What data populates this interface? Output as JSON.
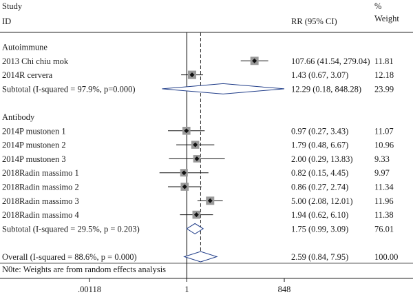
{
  "chart_data": {
    "type": "forest",
    "headers": {
      "study_top": "Study",
      "study_bottom": "ID",
      "effect": "RR (95% CI)",
      "weight_top": "%",
      "weight_bottom": "Weight"
    },
    "x_scale": "log",
    "x_ticks": [
      ".00118",
      "1",
      "848"
    ],
    "x_tick_values": [
      0.00118,
      1,
      848
    ],
    "null_line": 1,
    "overall_line": 2.59,
    "rows": [
      {
        "kind": "group",
        "label": "Autoimmune"
      },
      {
        "kind": "study",
        "label": "2013 Chi chiu mok",
        "rr": 107.66,
        "lo": 41.54,
        "hi": 279.04,
        "effect_text": "107.66 (41.54, 279.04)",
        "weight": 11.81,
        "weight_text": "11.81"
      },
      {
        "kind": "study",
        "label": "2014R cervera",
        "rr": 1.43,
        "lo": 0.67,
        "hi": 3.07,
        "effect_text": "1.43 (0.67, 3.07)",
        "weight": 12.18,
        "weight_text": "12.18"
      },
      {
        "kind": "subtotal",
        "label": "Subtotal (I-squared = 97.9%, p=0.000)",
        "rr": 12.29,
        "lo": 0.18,
        "hi": 848.28,
        "effect_text": "12.29 (0.18, 848.28)",
        "weight_text": "23.99"
      },
      {
        "kind": "spacer"
      },
      {
        "kind": "group",
        "label": "Antibody"
      },
      {
        "kind": "study",
        "label": "2014P mustonen 1",
        "rr": 0.97,
        "lo": 0.27,
        "hi": 3.43,
        "effect_text": "0.97 (0.27, 3.43)",
        "weight": 11.07,
        "weight_text": "11.07"
      },
      {
        "kind": "study",
        "label": "2014P mustonen 2",
        "rr": 1.79,
        "lo": 0.48,
        "hi": 6.67,
        "effect_text": "1.79 (0.48, 6.67)",
        "weight": 10.96,
        "weight_text": "10.96"
      },
      {
        "kind": "study",
        "label": "2014P mustonen 3",
        "rr": 2.0,
        "lo": 0.29,
        "hi": 13.83,
        "effect_text": "2.00 (0.29, 13.83)",
        "weight": 9.33,
        "weight_text": "9.33"
      },
      {
        "kind": "study",
        "label": "2018Radin massimo 1",
        "rr": 0.82,
        "lo": 0.15,
        "hi": 4.45,
        "effect_text": "0.82 (0.15, 4.45)",
        "weight": 9.97,
        "weight_text": "9.97"
      },
      {
        "kind": "study",
        "label": "2018Radin massimo 2",
        "rr": 0.86,
        "lo": 0.27,
        "hi": 2.74,
        "effect_text": "0.86 (0.27, 2.74)",
        "weight": 11.34,
        "weight_text": "11.34"
      },
      {
        "kind": "study",
        "label": "2018Radin massimo 3",
        "rr": 5.0,
        "lo": 2.08,
        "hi": 12.01,
        "effect_text": "5.00 (2.08, 12.01)",
        "weight": 11.96,
        "weight_text": "11.96"
      },
      {
        "kind": "study",
        "label": "2018Radin massimo 4",
        "rr": 1.94,
        "lo": 0.62,
        "hi": 6.1,
        "effect_text": "1.94 (0.62, 6.10)",
        "weight": 11.38,
        "weight_text": "11.38"
      },
      {
        "kind": "subtotal",
        "label": "Subtotal (I-squared = 29.5%, p = 0.203)",
        "rr": 1.75,
        "lo": 0.99,
        "hi": 3.09,
        "effect_text": "1.75 (0.99, 3.09)",
        "weight_text": "76.01"
      },
      {
        "kind": "spacer"
      },
      {
        "kind": "overall",
        "label": "Overall (I-squared = 88.6%, p = 0.000)",
        "rr": 2.59,
        "lo": 0.84,
        "hi": 7.95,
        "effect_text": "2.59 (0.84, 7.95)",
        "weight_text": "100.00"
      }
    ],
    "footnote": "N0te: Weights are from random effects analysis"
  }
}
